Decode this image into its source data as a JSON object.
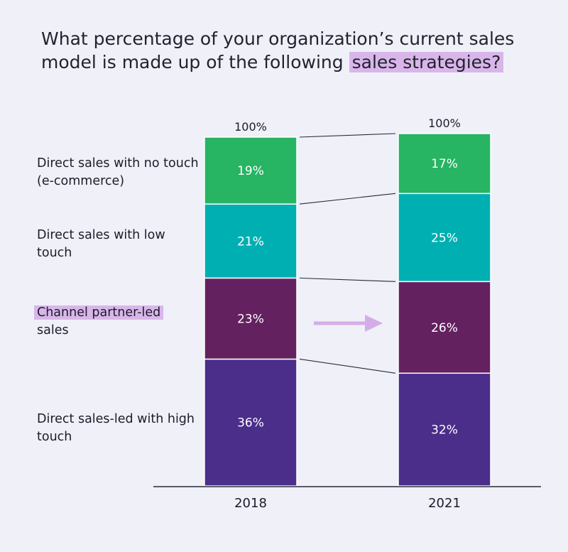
{
  "title": {
    "before": "What percentage of your organization’s current sales model is made up of the following",
    "highlight": "sales strategies?"
  },
  "colors": {
    "background": "#eff0f8",
    "highlight": "#d9b6ea",
    "arrow": "#d4ade8"
  },
  "labels": {
    "no_touch": "Direct sales with no touch (e-commerce)",
    "low_touch": "Direct sales with low touch",
    "channel": "Channel partner-led",
    "channel_rest": "sales",
    "high_touch": "Direct sales-led with high touch"
  },
  "chart_data": {
    "type": "stacked-bar",
    "title": "What percentage of your organization’s current sales model is made up of the following sales strategies?",
    "categories": [
      "2018",
      "2021"
    ],
    "totals": [
      "100%",
      "100%"
    ],
    "ylim": [
      0,
      100
    ],
    "series": [
      {
        "name": "Direct sales-led with high touch",
        "color": "#4b2d8a",
        "values": [
          36,
          32
        ]
      },
      {
        "name": "Channel partner-led sales",
        "color": "#63215f",
        "values": [
          23,
          26
        ]
      },
      {
        "name": "Direct sales with low touch",
        "color": "#00afb2",
        "values": [
          21,
          25
        ]
      },
      {
        "name": "Direct sales with no touch (e-commerce)",
        "color": "#27b463",
        "values": [
          19,
          17
        ]
      }
    ]
  }
}
